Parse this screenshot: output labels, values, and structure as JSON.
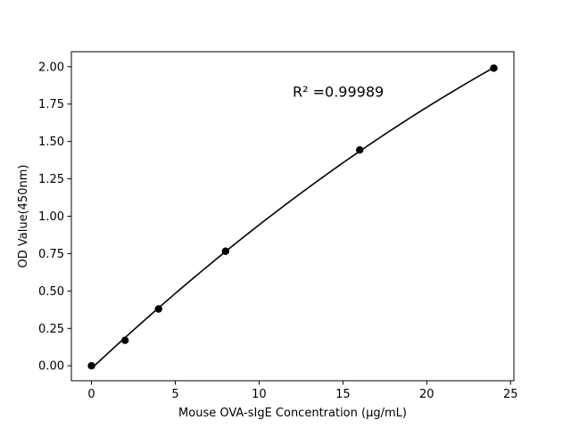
{
  "chart_data": {
    "type": "scatter",
    "title": "",
    "xlabel": "Mouse OVA-sIgE Concentration (μg/mL)",
    "ylabel": "OD Value(450nm)",
    "xlim": [
      -1.2,
      25.2
    ],
    "ylim": [
      -0.1,
      2.1
    ],
    "xticks": [
      0,
      5,
      10,
      15,
      20,
      25
    ],
    "xtick_labels": [
      "0",
      "5",
      "10",
      "15",
      "20",
      "25"
    ],
    "yticks": [
      0.0,
      0.25,
      0.5,
      0.75,
      1.0,
      1.25,
      1.5,
      1.75,
      2.0
    ],
    "ytick_labels": [
      "0.00",
      "0.25",
      "0.50",
      "0.75",
      "1.00",
      "1.25",
      "1.50",
      "1.75",
      "2.00"
    ],
    "grid": false,
    "legend": "none",
    "series": [
      {
        "marker": "circle",
        "color": "#000000",
        "x": [
          0,
          2,
          4,
          8,
          16,
          24
        ],
        "y": [
          0.0,
          0.17,
          0.38,
          0.766,
          1.443,
          1.99
        ]
      }
    ],
    "fit_curve": {
      "type": "polynomial",
      "color": "#000000",
      "x_range": [
        0,
        24
      ]
    },
    "annotations": [
      {
        "id": "r-squared",
        "text": "R² =0.99989",
        "x": 12,
        "y": 1.8
      }
    ]
  }
}
